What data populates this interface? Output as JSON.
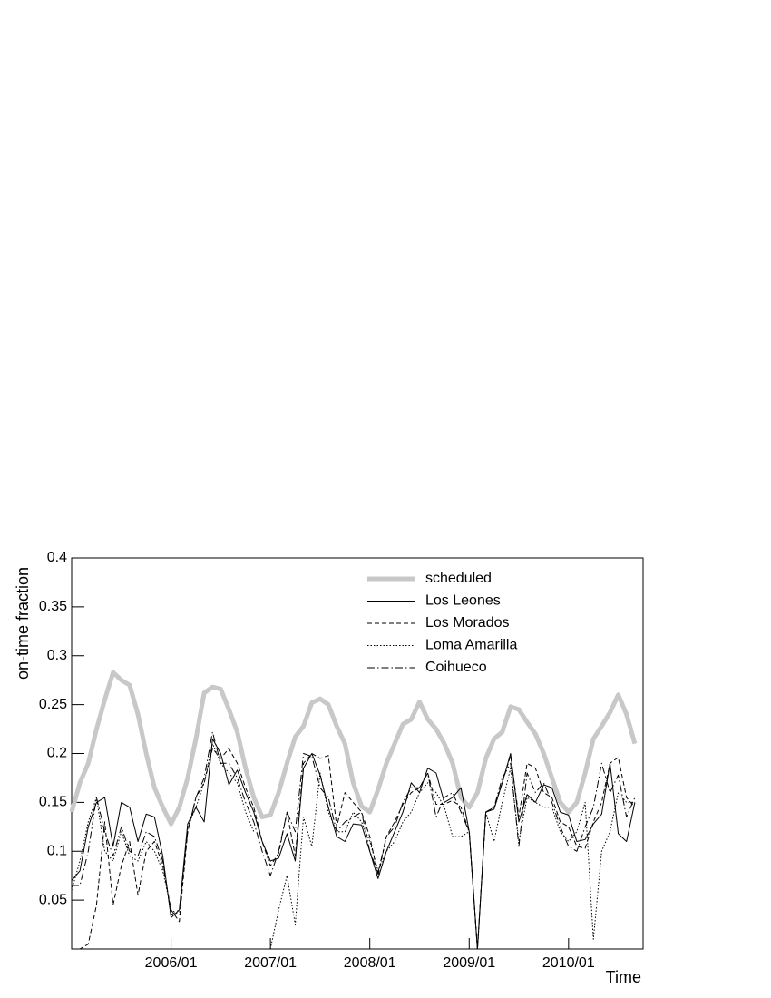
{
  "chart_data": {
    "type": "line",
    "ylabel": "on-time fraction",
    "xlabel": "Time",
    "xlim": [
      2005,
      2010.75
    ],
    "ylim": [
      0,
      0.4
    ],
    "xticks": [
      {
        "value": 2006,
        "label": "2006/01"
      },
      {
        "value": 2007,
        "label": "2007/01"
      },
      {
        "value": 2008,
        "label": "2008/01"
      },
      {
        "value": 2009,
        "label": "2009/01"
      },
      {
        "value": 2010,
        "label": "2010/01"
      }
    ],
    "yticks": [
      0.05,
      0.1,
      0.15,
      0.2,
      0.25,
      0.3,
      0.35,
      0.4
    ],
    "legend": "upper right",
    "x": [
      2005,
      2005.083,
      2005.167,
      2005.25,
      2005.333,
      2005.417,
      2005.5,
      2005.583,
      2005.667,
      2005.75,
      2005.833,
      2005.917,
      2006,
      2006.083,
      2006.167,
      2006.25,
      2006.333,
      2006.417,
      2006.5,
      2006.583,
      2006.667,
      2006.75,
      2006.833,
      2006.917,
      2007,
      2007.083,
      2007.167,
      2007.25,
      2007.333,
      2007.417,
      2007.5,
      2007.583,
      2007.667,
      2007.75,
      2007.833,
      2007.917,
      2008,
      2008.083,
      2008.167,
      2008.25,
      2008.333,
      2008.417,
      2008.5,
      2008.583,
      2008.667,
      2008.75,
      2008.833,
      2008.917,
      2009,
      2009.083,
      2009.167,
      2009.25,
      2009.333,
      2009.417,
      2009.5,
      2009.583,
      2009.667,
      2009.75,
      2009.833,
      2009.917,
      2010,
      2010.083,
      2010.167,
      2010.25,
      2010.333,
      2010.417,
      2010.5,
      2010.583,
      2010.667
    ],
    "series": [
      {
        "name": "scheduled",
        "color": "#c8c8c8",
        "width": 5,
        "style": "solid",
        "values": [
          0.14,
          0.17,
          0.19,
          0.225,
          0.255,
          0.283,
          0.275,
          0.27,
          0.24,
          0.2,
          0.165,
          0.145,
          0.128,
          0.145,
          0.175,
          0.215,
          0.262,
          0.268,
          0.266,
          0.245,
          0.222,
          0.185,
          0.155,
          0.135,
          0.137,
          0.16,
          0.19,
          0.217,
          0.228,
          0.252,
          0.256,
          0.25,
          0.228,
          0.21,
          0.17,
          0.146,
          0.14,
          0.163,
          0.19,
          0.21,
          0.23,
          0.235,
          0.253,
          0.235,
          0.225,
          0.21,
          0.19,
          0.155,
          0.145,
          0.16,
          0.195,
          0.215,
          0.222,
          0.248,
          0.245,
          0.232,
          0.22,
          0.2,
          0.175,
          0.15,
          0.14,
          0.15,
          0.18,
          0.215,
          0.228,
          0.242,
          0.26,
          0.24,
          0.21
        ]
      },
      {
        "name": "Los Leones",
        "color": "#000000",
        "width": 1,
        "style": "solid",
        "values": [
          0.07,
          0.08,
          0.125,
          0.15,
          0.155,
          0.105,
          0.15,
          0.145,
          0.11,
          0.138,
          0.135,
          0.095,
          0.032,
          0.04,
          0.128,
          0.145,
          0.13,
          0.215,
          0.2,
          0.168,
          0.183,
          0.16,
          0.14,
          0.11,
          0.09,
          0.093,
          0.118,
          0.09,
          0.185,
          0.2,
          0.178,
          0.145,
          0.115,
          0.11,
          0.128,
          0.127,
          0.1,
          0.072,
          0.1,
          0.12,
          0.14,
          0.17,
          0.16,
          0.185,
          0.18,
          0.15,
          0.155,
          0.165,
          0.12,
          0.0,
          0.14,
          0.143,
          0.17,
          0.2,
          0.13,
          0.158,
          0.15,
          0.168,
          0.165,
          0.14,
          0.137,
          0.11,
          0.112,
          0.128,
          0.138,
          0.19,
          0.118,
          0.11,
          0.15
        ]
      },
      {
        "name": "Los Morados",
        "color": "#000000",
        "width": 1,
        "style": "dashed",
        "values": [
          0.0,
          0.0,
          0.005,
          0.045,
          0.13,
          0.045,
          0.085,
          0.11,
          0.055,
          0.1,
          0.11,
          0.085,
          0.04,
          0.028,
          0.12,
          0.155,
          0.17,
          0.205,
          0.195,
          0.205,
          0.19,
          0.165,
          0.145,
          0.11,
          0.085,
          0.098,
          0.14,
          0.095,
          0.19,
          0.2,
          0.195,
          0.198,
          0.125,
          0.16,
          0.15,
          0.14,
          0.115,
          0.075,
          0.115,
          0.13,
          0.148,
          0.16,
          0.165,
          0.18,
          0.148,
          0.148,
          0.152,
          0.145,
          0.12,
          0.0,
          0.14,
          0.145,
          0.17,
          0.198,
          0.135,
          0.19,
          0.185,
          0.16,
          0.155,
          0.13,
          0.125,
          0.105,
          0.103,
          0.13,
          0.15,
          0.19,
          0.196,
          0.155,
          0.145
        ]
      },
      {
        "name": "Loma Amarilla",
        "color": "#000000",
        "width": 1,
        "style": "dotted",
        "values": [
          0.06,
          0.09,
          0.13,
          0.155,
          0.1,
          0.09,
          0.12,
          0.095,
          0.09,
          0.11,
          0.1,
          0.08,
          0.04,
          0.035,
          0.125,
          0.145,
          0.17,
          0.21,
          0.19,
          0.18,
          0.17,
          0.14,
          0.12,
          null,
          0.0,
          0.04,
          0.075,
          0.025,
          0.135,
          0.105,
          0.18,
          0.14,
          0.12,
          0.12,
          0.14,
          0.13,
          0.11,
          0.08,
          0.1,
          0.11,
          0.13,
          0.14,
          0.16,
          0.17,
          0.16,
          0.145,
          0.115,
          0.115,
          0.12,
          0.0,
          0.14,
          0.11,
          0.15,
          0.185,
          0.11,
          0.155,
          0.15,
          0.145,
          0.145,
          0.12,
          0.11,
          0.12,
          0.15,
          0.01,
          0.1,
          0.12,
          0.16,
          0.15,
          0.15
        ]
      },
      {
        "name": "Coihueco",
        "color": "#000000",
        "width": 1,
        "style": "dashdot",
        "values": [
          0.065,
          0.065,
          0.1,
          0.155,
          0.12,
          0.095,
          0.125,
          0.1,
          0.095,
          0.12,
          0.115,
          0.09,
          0.035,
          0.04,
          0.12,
          0.155,
          0.175,
          0.222,
          0.19,
          0.19,
          0.175,
          0.15,
          0.13,
          0.1,
          0.075,
          0.1,
          0.14,
          0.12,
          0.2,
          0.197,
          0.165,
          0.155,
          0.12,
          0.13,
          0.135,
          0.14,
          0.1,
          0.078,
          0.115,
          0.125,
          0.15,
          0.165,
          0.165,
          0.18,
          0.135,
          0.155,
          0.16,
          0.14,
          0.12,
          0.0,
          0.14,
          0.145,
          0.175,
          0.19,
          0.105,
          0.18,
          0.16,
          0.17,
          0.15,
          0.125,
          0.105,
          0.1,
          0.125,
          0.145,
          0.19,
          0.16,
          0.178,
          0.135,
          0.155
        ]
      }
    ]
  }
}
